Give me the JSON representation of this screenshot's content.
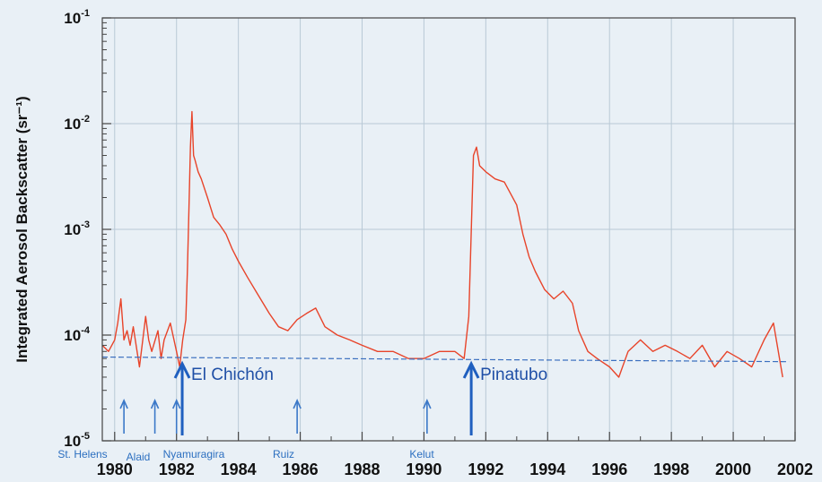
{
  "chart_data": {
    "type": "line",
    "ylabel": "Integrated Aerosol Backscatter (sr⁻¹)",
    "xlabel": "",
    "yscale": "log",
    "ylim": [
      1e-05,
      0.1
    ],
    "xlim": [
      1979.6,
      2002
    ],
    "grid": true,
    "x_ticks": [
      "1980",
      "1982",
      "1984",
      "1986",
      "1988",
      "1990",
      "1992",
      "1994",
      "1996",
      "1998",
      "2000",
      "2002"
    ],
    "y_ticks": [
      {
        "value": 1e-05,
        "base": "10",
        "exp": "-5"
      },
      {
        "value": 0.0001,
        "base": "10",
        "exp": "-4"
      },
      {
        "value": 0.001,
        "base": "10",
        "exp": "-3"
      },
      {
        "value": 0.01,
        "base": "10",
        "exp": "-2"
      },
      {
        "value": 0.1,
        "base": "10",
        "exp": "-1"
      }
    ],
    "series": [
      {
        "color": "#e8442a",
        "x": [
          1979.6,
          1979.8,
          1980.0,
          1980.1,
          1980.2,
          1980.3,
          1980.4,
          1980.5,
          1980.6,
          1980.8,
          1981.0,
          1981.1,
          1981.2,
          1981.4,
          1981.5,
          1981.6,
          1981.8,
          1982.0,
          1982.1,
          1982.2,
          1982.3,
          1982.35,
          1982.4,
          1982.45,
          1982.5,
          1982.55,
          1982.6,
          1982.7,
          1982.8,
          1983.0,
          1983.2,
          1983.4,
          1983.6,
          1983.8,
          1984.0,
          1984.3,
          1984.6,
          1985.0,
          1985.3,
          1985.6,
          1985.9,
          1986.2,
          1986.5,
          1986.8,
          1987.2,
          1987.6,
          1988.0,
          1988.5,
          1989.0,
          1989.5,
          1990.0,
          1990.5,
          1991.0,
          1991.3,
          1991.45,
          1991.55,
          1991.6,
          1991.7,
          1991.8,
          1992.0,
          1992.3,
          1992.6,
          1993.0,
          1993.2,
          1993.4,
          1993.6,
          1993.9,
          1994.2,
          1994.5,
          1994.8,
          1995.0,
          1995.3,
          1995.6,
          1996.0,
          1996.3,
          1996.6,
          1997.0,
          1997.4,
          1997.8,
          1998.2,
          1998.6,
          1999.0,
          1999.4,
          1999.8,
          2000.2,
          2000.6,
          2001.0,
          2001.3,
          2001.6
        ],
        "y": [
          8e-05,
          7e-05,
          9e-05,
          0.00013,
          0.00022,
          9e-05,
          0.00011,
          8e-05,
          0.00012,
          5e-05,
          0.00015,
          9e-05,
          7e-05,
          0.00011,
          6e-05,
          9e-05,
          0.00013,
          7e-05,
          5e-05,
          9e-05,
          0.00014,
          0.0004,
          0.0015,
          0.006,
          0.013,
          0.005,
          0.0045,
          0.0035,
          0.003,
          0.002,
          0.0013,
          0.0011,
          0.0009,
          0.00065,
          0.0005,
          0.00035,
          0.00025,
          0.00016,
          0.00012,
          0.00011,
          0.00014,
          0.00016,
          0.00018,
          0.00012,
          0.0001,
          9e-05,
          8e-05,
          7e-05,
          7e-05,
          6e-05,
          6e-05,
          7e-05,
          7e-05,
          6e-05,
          0.00015,
          0.0015,
          0.005,
          0.006,
          0.004,
          0.0035,
          0.003,
          0.0028,
          0.0017,
          0.0009,
          0.00055,
          0.0004,
          0.00027,
          0.00022,
          0.00026,
          0.0002,
          0.00011,
          7e-05,
          6e-05,
          5e-05,
          4e-05,
          7e-05,
          9e-05,
          7e-05,
          8e-05,
          7e-05,
          6e-05,
          8e-05,
          5e-05,
          7e-05,
          6e-05,
          5e-05,
          9e-05,
          0.00013,
          4e-05
        ]
      },
      {
        "color": "#3b6fbf",
        "style": "dashed",
        "x": [
          1979.6,
          2001.8
        ],
        "y": [
          6.2e-05,
          5.6e-05
        ]
      }
    ],
    "annotations": {
      "volcano_labels": [
        {
          "text": "St. Helens",
          "year": 1980.3
        },
        {
          "text": "Alaid",
          "year": 1981.3
        },
        {
          "text": "Nyamuragira",
          "year": 1982.0
        },
        {
          "text": "Ruiz",
          "year": 1985.9
        },
        {
          "text": "Kelut",
          "year": 1990.1
        }
      ],
      "major_eruptions": [
        {
          "text": "El Chichón",
          "year": 1982.3
        },
        {
          "text": "Pinatubo",
          "year": 1991.5
        }
      ]
    }
  }
}
